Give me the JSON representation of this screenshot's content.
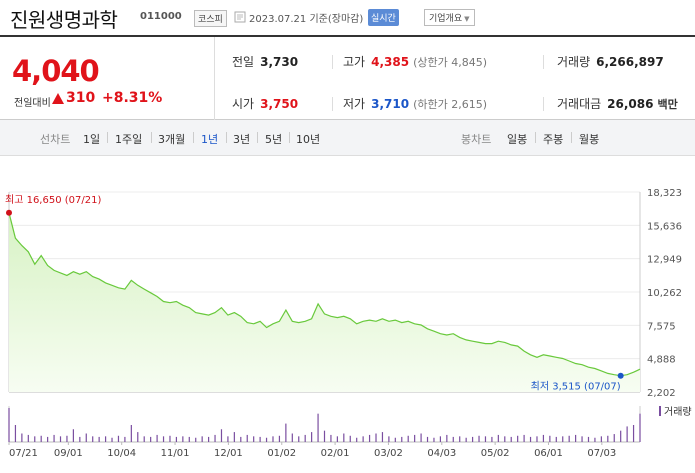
{
  "header": {
    "name": "진원생명과학",
    "code": "011000",
    "market": "코스피",
    "date": "2023.07.21",
    "date_suffix": "기준(장마감)",
    "realtime": "실시간",
    "corp_info": "기업개요"
  },
  "price": {
    "current": "4,040",
    "change_label": "전일대비",
    "change": "310",
    "change_pct": "+8.31%",
    "direction": "up"
  },
  "stats": {
    "prev_close": {
      "label": "전일",
      "value": "3,730"
    },
    "high": {
      "label": "고가",
      "value": "4,385",
      "sub": "(상한가 4,845)"
    },
    "volume": {
      "label": "거래량",
      "value": "6,266,897"
    },
    "open": {
      "label": "시가",
      "value": "3,750"
    },
    "low": {
      "label": "저가",
      "value": "3,710",
      "sub": "(하한가 2,615)"
    },
    "amount": {
      "label": "거래대금",
      "value": "26,086",
      "unit": "백만"
    }
  },
  "tabs": {
    "line_title": "선차트",
    "line_tabs": [
      "1일",
      "1주일",
      "3개월",
      "1년",
      "3년",
      "5년",
      "10년"
    ],
    "active_line_tab": "1년",
    "candle_title": "봉차트",
    "candle_tabs": [
      "일봉",
      "주봉",
      "월봉"
    ]
  },
  "chart_data": {
    "type": "area",
    "y_ticks": [
      "18,323",
      "15,636",
      "12,949",
      "10,262",
      "7,575",
      "4,888",
      "2,202"
    ],
    "ylim": [
      2202,
      18323
    ],
    "x_ticks": [
      "07/21",
      "09/01",
      "10/04",
      "11/01",
      "12/01",
      "01/02",
      "02/01",
      "03/02",
      "04/03",
      "05/02",
      "06/01",
      "07/03"
    ],
    "high_label": "최고 16,650 (07/21)",
    "low_label": "최저 3,515 (07/07)",
    "volume_label": "거래량",
    "series": [
      {
        "values": [
          16650,
          14600,
          14000,
          13500,
          12500,
          13200,
          12400,
          12000,
          11800,
          11600,
          11900,
          11700,
          11900,
          11500,
          11300,
          11000,
          10800,
          10600,
          10500,
          11200,
          10800,
          10500,
          10200,
          9900,
          9500,
          9400,
          9500,
          9200,
          9000,
          8600,
          8500,
          8400,
          8600,
          9000,
          8400,
          8600,
          8300,
          7800,
          7700,
          7900,
          7400,
          7700,
          7900,
          8800,
          7900,
          7800,
          7900,
          8100,
          9300,
          8500,
          8300,
          8200,
          8300,
          8100,
          7700,
          7900,
          8000,
          7900,
          8100,
          7900,
          8000,
          7800,
          7900,
          7700,
          7600,
          7300,
          7100,
          6900,
          6800,
          6900,
          6600,
          6400,
          6300,
          6200,
          6100,
          6100,
          6300,
          6200,
          6000,
          5900,
          5500,
          5200,
          5000,
          5200,
          5100,
          5000,
          4900,
          4700,
          4500,
          4400,
          4200,
          4100,
          3900,
          3700,
          3600,
          3515,
          3600,
          3800,
          4040
        ]
      }
    ],
    "volume": [
      120,
      60,
      30,
      25,
      20,
      22,
      18,
      25,
      20,
      22,
      45,
      18,
      30,
      20,
      18,
      20,
      15,
      22,
      18,
      60,
      35,
      20,
      18,
      25,
      20,
      22,
      18,
      20,
      18,
      15,
      20,
      18,
      25,
      45,
      20,
      35,
      18,
      25,
      20,
      18,
      15,
      20,
      22,
      65,
      30,
      20,
      25,
      35,
      100,
      40,
      25,
      20,
      30,
      22,
      15,
      20,
      25,
      30,
      35,
      20,
      15,
      18,
      22,
      25,
      30,
      18,
      15,
      20,
      25,
      18,
      20,
      15,
      18,
      22,
      20,
      18,
      25,
      20,
      18,
      22,
      25,
      18,
      20,
      25,
      22,
      18,
      20,
      22,
      25,
      20,
      18,
      15,
      20,
      22,
      28,
      40,
      55,
      60,
      100
    ]
  }
}
